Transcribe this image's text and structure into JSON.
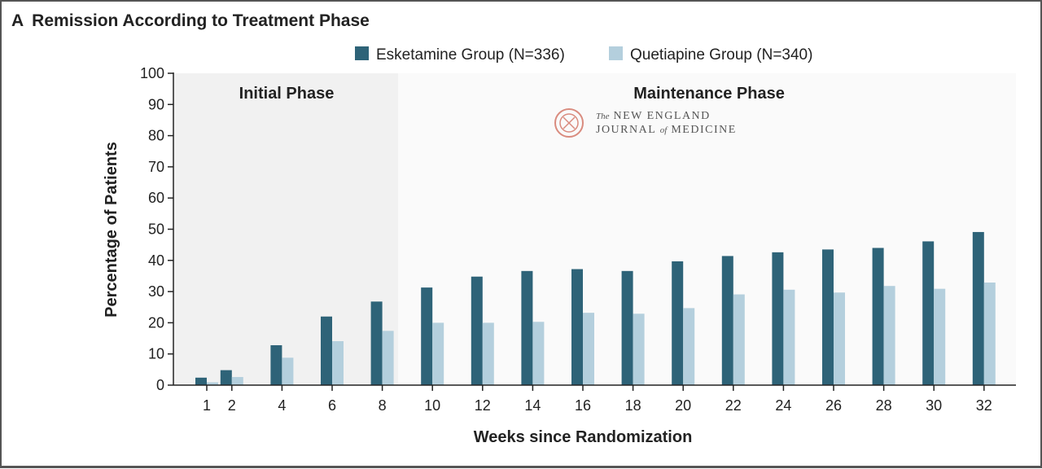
{
  "panel": {
    "letter": "A",
    "title": "Remission According to Treatment Phase"
  },
  "watermark": {
    "line1_the": "The",
    "line1": "NEW ENGLAND",
    "line2_a": "JOURNAL",
    "line2_of": "of",
    "line2_b": "MEDICINE",
    "seal_color": "#d98b7e"
  },
  "colors": {
    "esketamine": "#2e6378",
    "quetiapine": "#b4cfdd",
    "initial_bg": "#f1f1f1",
    "maintenance_bg": "#fafafa"
  },
  "chart_data": {
    "type": "bar",
    "xlabel": "Weeks since Randomization",
    "ylabel": "Percentage of Patients",
    "ylim": [
      0,
      100
    ],
    "yticks": [
      0,
      10,
      20,
      30,
      40,
      50,
      60,
      70,
      80,
      90,
      100
    ],
    "categories": [
      "1",
      "2",
      "4",
      "6",
      "8",
      "10",
      "12",
      "14",
      "16",
      "18",
      "20",
      "22",
      "24",
      "26",
      "28",
      "30",
      "32"
    ],
    "weeks": [
      1,
      2,
      4,
      6,
      8,
      10,
      12,
      14,
      16,
      18,
      20,
      22,
      24,
      26,
      28,
      30,
      32
    ],
    "phases": [
      {
        "name": "Initial Phase",
        "weeks": [
          0,
          8
        ]
      },
      {
        "name": "Maintenance Phase",
        "weeks": [
          9,
          33
        ]
      }
    ],
    "legend_position": "top-right",
    "series": [
      {
        "name": "Esketamine Group (N=336)",
        "values": [
          2.4,
          4.8,
          12.8,
          22.0,
          26.8,
          31.3,
          34.8,
          36.6,
          37.2,
          36.6,
          39.7,
          41.4,
          42.6,
          43.5,
          44.0,
          46.1,
          49.1
        ]
      },
      {
        "name": "Quetiapine Group (N=340)",
        "values": [
          0.9,
          2.6,
          8.8,
          14.1,
          17.4,
          20.0,
          20.0,
          20.3,
          23.2,
          22.9,
          24.7,
          29.1,
          30.6,
          29.7,
          31.8,
          30.9,
          32.9
        ]
      }
    ]
  }
}
